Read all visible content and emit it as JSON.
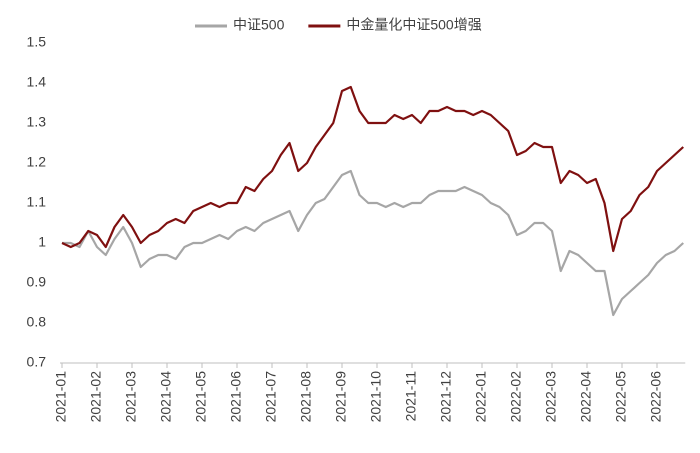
{
  "chart_data": {
    "type": "line",
    "categories": [
      "2021-01",
      null,
      null,
      null,
      "2021-02",
      null,
      null,
      null,
      "2021-03",
      null,
      null,
      null,
      "2021-04",
      null,
      null,
      null,
      "2021-05",
      null,
      null,
      null,
      "2021-06",
      null,
      null,
      null,
      "2021-07",
      null,
      null,
      null,
      "2021-08",
      null,
      null,
      null,
      "2021-09",
      null,
      null,
      null,
      "2021-10",
      null,
      null,
      null,
      "2021-11",
      null,
      null,
      null,
      "2021-12",
      null,
      null,
      null,
      "2022-01",
      null,
      null,
      null,
      "2022-02",
      null,
      null,
      null,
      "2022-03",
      null,
      null,
      null,
      "2022-04",
      null,
      null,
      null,
      "2022-05",
      null,
      null,
      null,
      "2022-06",
      null,
      null,
      null
    ],
    "series": [
      {
        "name": "中证500",
        "color": "#a6a6a6",
        "values": [
          1.0,
          1.0,
          0.99,
          1.03,
          0.99,
          0.97,
          1.01,
          1.04,
          1.0,
          0.94,
          0.96,
          0.97,
          0.97,
          0.96,
          0.99,
          1.0,
          1.0,
          1.01,
          1.02,
          1.01,
          1.03,
          1.04,
          1.03,
          1.05,
          1.06,
          1.07,
          1.08,
          1.03,
          1.07,
          1.1,
          1.11,
          1.14,
          1.17,
          1.18,
          1.12,
          1.1,
          1.1,
          1.09,
          1.1,
          1.09,
          1.1,
          1.1,
          1.12,
          1.13,
          1.13,
          1.13,
          1.14,
          1.13,
          1.12,
          1.1,
          1.09,
          1.07,
          1.02,
          1.03,
          1.05,
          1.05,
          1.03,
          0.93,
          0.98,
          0.97,
          0.95,
          0.93,
          0.93,
          0.82,
          0.86,
          0.88,
          0.9,
          0.92,
          0.95,
          0.97,
          0.98,
          1.0
        ]
      },
      {
        "name": "中金量化中证500增强",
        "color": "#7f1010",
        "values": [
          1.0,
          0.99,
          1.0,
          1.03,
          1.02,
          0.99,
          1.04,
          1.07,
          1.04,
          1.0,
          1.02,
          1.03,
          1.05,
          1.06,
          1.05,
          1.08,
          1.09,
          1.1,
          1.09,
          1.1,
          1.1,
          1.14,
          1.13,
          1.16,
          1.18,
          1.22,
          1.25,
          1.18,
          1.2,
          1.24,
          1.27,
          1.3,
          1.38,
          1.39,
          1.33,
          1.3,
          1.3,
          1.3,
          1.32,
          1.31,
          1.32,
          1.3,
          1.33,
          1.33,
          1.34,
          1.33,
          1.33,
          1.32,
          1.33,
          1.32,
          1.3,
          1.28,
          1.22,
          1.23,
          1.25,
          1.24,
          1.24,
          1.15,
          1.18,
          1.17,
          1.15,
          1.16,
          1.1,
          0.98,
          1.06,
          1.08,
          1.12,
          1.14,
          1.18,
          1.2,
          1.22,
          1.24
        ]
      }
    ],
    "ylim": [
      0.7,
      1.5
    ],
    "yticks": [
      0.7,
      0.8,
      0.9,
      1,
      1.1,
      1.2,
      1.3,
      1.4,
      1.5
    ],
    "legend": "top"
  }
}
